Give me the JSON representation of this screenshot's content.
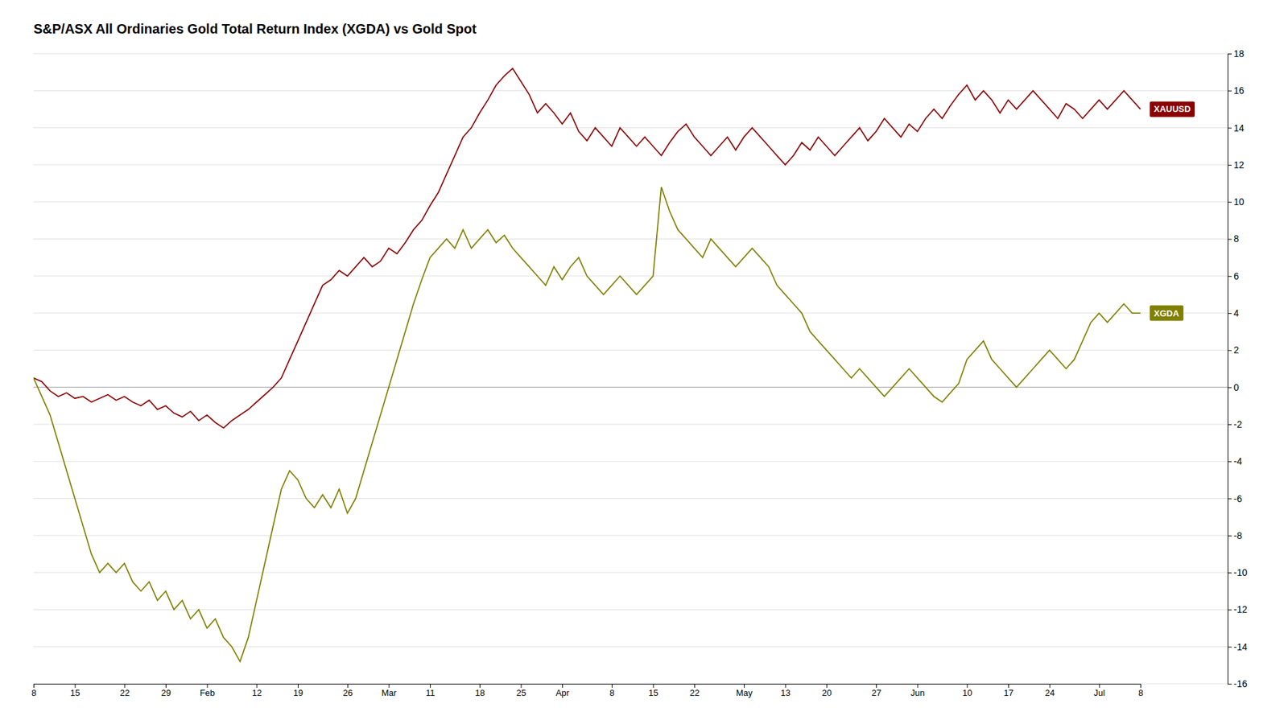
{
  "chart_data": {
    "type": "line",
    "title": "S&P/ASX All Ordinaries Gold Total Return Index (XGDA) vs Gold Spot",
    "categories": [
      "8",
      null,
      null,
      null,
      null,
      "15",
      null,
      null,
      null,
      null,
      null,
      "22",
      null,
      null,
      null,
      null,
      "29",
      null,
      null,
      null,
      null,
      "Feb",
      null,
      null,
      null,
      null,
      null,
      "12",
      null,
      null,
      null,
      null,
      "19",
      null,
      null,
      null,
      null,
      null,
      "26",
      null,
      null,
      null,
      null,
      "Mar",
      null,
      null,
      null,
      null,
      "11",
      null,
      null,
      null,
      null,
      null,
      "18",
      null,
      null,
      null,
      null,
      "25",
      null,
      null,
      null,
      null,
      "Apr",
      null,
      null,
      null,
      null,
      null,
      "8",
      null,
      null,
      null,
      null,
      "15",
      null,
      null,
      null,
      null,
      "22",
      null,
      null,
      null,
      null,
      null,
      "May",
      null,
      null,
      null,
      null,
      "13",
      null,
      null,
      null,
      null,
      "20",
      null,
      null,
      null,
      null,
      null,
      "27",
      null,
      null,
      null,
      null,
      "Jun",
      null,
      null,
      null,
      null,
      null,
      "10",
      null,
      null,
      null,
      null,
      "17",
      null,
      null,
      null,
      null,
      "24",
      null,
      null,
      null,
      null,
      null,
      "Jul",
      null,
      null,
      null,
      null,
      "8"
    ],
    "series": [
      {
        "name": "XAUUSD",
        "color": "#8B0000",
        "values": [
          0.5,
          0.3,
          -0.2,
          -0.5,
          -0.3,
          -0.6,
          -0.5,
          -0.8,
          -0.6,
          -0.4,
          -0.7,
          -0.5,
          -0.8,
          -1.0,
          -0.7,
          -1.2,
          -1.0,
          -1.4,
          -1.6,
          -1.3,
          -1.8,
          -1.5,
          -1.9,
          -2.2,
          -1.8,
          -1.5,
          -1.2,
          -0.8,
          -0.4,
          0.0,
          0.5,
          1.5,
          2.5,
          3.5,
          4.5,
          5.5,
          5.8,
          6.3,
          6.0,
          6.5,
          7.0,
          6.5,
          6.8,
          7.5,
          7.2,
          7.8,
          8.5,
          9.0,
          9.8,
          10.5,
          11.5,
          12.5,
          13.5,
          14.0,
          14.8,
          15.5,
          16.3,
          16.8,
          17.2,
          16.5,
          15.8,
          14.8,
          15.3,
          14.8,
          14.2,
          14.8,
          13.8,
          13.3,
          14.0,
          13.5,
          13.0,
          14.0,
          13.5,
          13.0,
          13.5,
          13.0,
          12.5,
          13.2,
          13.8,
          14.2,
          13.5,
          13.0,
          12.5,
          13.0,
          13.5,
          12.8,
          13.5,
          14.0,
          13.5,
          13.0,
          12.5,
          12.0,
          12.5,
          13.2,
          12.8,
          13.5,
          13.0,
          12.5,
          13.0,
          13.5,
          14.0,
          13.3,
          13.8,
          14.5,
          14.0,
          13.5,
          14.2,
          13.8,
          14.5,
          15.0,
          14.5,
          15.2,
          15.8,
          16.3,
          15.5,
          16.0,
          15.5,
          14.8,
          15.5,
          15.0,
          15.5,
          16.0,
          15.5,
          15.0,
          14.5,
          15.3,
          15.0,
          14.5,
          15.0,
          15.5,
          15.0,
          15.5,
          16.0,
          15.5,
          15.0
        ]
      },
      {
        "name": "XGDA",
        "color": "#808000",
        "values": [
          0.5,
          -0.5,
          -1.5,
          -3.0,
          -4.5,
          -6.0,
          -7.5,
          -9.0,
          -10.0,
          -9.5,
          -10.0,
          -9.5,
          -10.5,
          -11.0,
          -10.5,
          -11.5,
          -11.0,
          -12.0,
          -11.5,
          -12.5,
          -12.0,
          -13.0,
          -12.5,
          -13.5,
          -14.0,
          -14.8,
          -13.5,
          -11.5,
          -9.5,
          -7.5,
          -5.5,
          -4.5,
          -5.0,
          -6.0,
          -6.5,
          -5.8,
          -6.5,
          -5.5,
          -6.8,
          -6.0,
          -4.5,
          -3.0,
          -1.5,
          0.0,
          1.5,
          3.0,
          4.5,
          5.8,
          7.0,
          7.5,
          8.0,
          7.5,
          8.5,
          7.5,
          8.0,
          8.5,
          7.8,
          8.2,
          7.5,
          7.0,
          6.5,
          6.0,
          5.5,
          6.5,
          5.8,
          6.5,
          7.0,
          6.0,
          5.5,
          5.0,
          5.5,
          6.0,
          5.5,
          5.0,
          5.5,
          6.0,
          10.8,
          9.5,
          8.5,
          8.0,
          7.5,
          7.0,
          8.0,
          7.5,
          7.0,
          6.5,
          7.0,
          7.5,
          7.0,
          6.5,
          5.5,
          5.0,
          4.5,
          4.0,
          3.0,
          2.5,
          2.0,
          1.5,
          1.0,
          0.5,
          1.0,
          0.5,
          0.0,
          -0.5,
          0.0,
          0.5,
          1.0,
          0.5,
          0.0,
          -0.5,
          -0.8,
          -0.3,
          0.2,
          1.5,
          2.0,
          2.5,
          1.5,
          1.0,
          0.5,
          0.0,
          0.5,
          1.0,
          1.5,
          2.0,
          1.5,
          1.0,
          1.5,
          2.5,
          3.5,
          4.0,
          3.5,
          4.0,
          4.5,
          4.0,
          4.0
        ]
      }
    ],
    "ylim": [
      -16,
      18
    ],
    "yticks": [
      -16,
      -14,
      -12,
      -10,
      -8,
      -6,
      -4,
      -2,
      0,
      2,
      4,
      6,
      8,
      10,
      12,
      14,
      16,
      18
    ],
    "grid": true
  }
}
